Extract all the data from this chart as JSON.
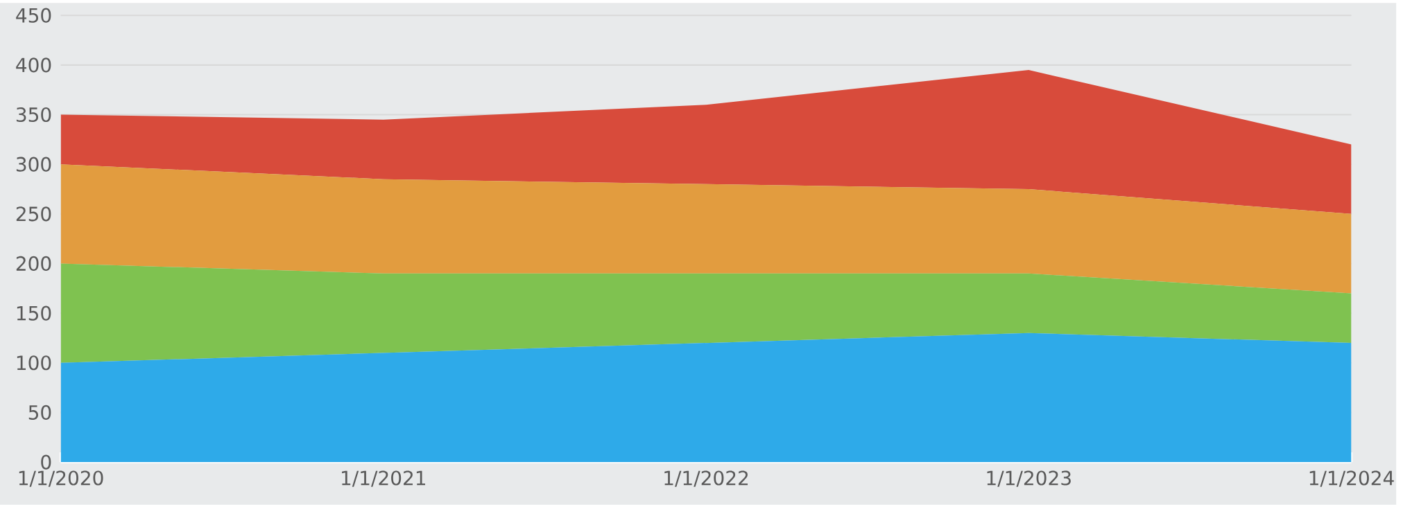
{
  "chart_data": {
    "type": "area",
    "stacked": true,
    "categories": [
      "1/1/2020",
      "1/1/2021",
      "1/1/2022",
      "1/1/2023",
      "1/1/2024"
    ],
    "series": [
      {
        "color": "#2eaae9",
        "values": [
          100,
          110,
          120,
          130,
          120
        ]
      },
      {
        "color": "#7fc250",
        "values": [
          100,
          80,
          70,
          60,
          50
        ]
      },
      {
        "color": "#e29c3f",
        "values": [
          100,
          95,
          90,
          85,
          80
        ]
      },
      {
        "color": "#d84b3b",
        "values": [
          50,
          60,
          80,
          120,
          70
        ]
      }
    ],
    "ylim": [
      0,
      450
    ],
    "yticks": [
      0,
      50,
      100,
      150,
      200,
      250,
      300,
      350,
      400,
      450
    ],
    "grid": "y"
  }
}
